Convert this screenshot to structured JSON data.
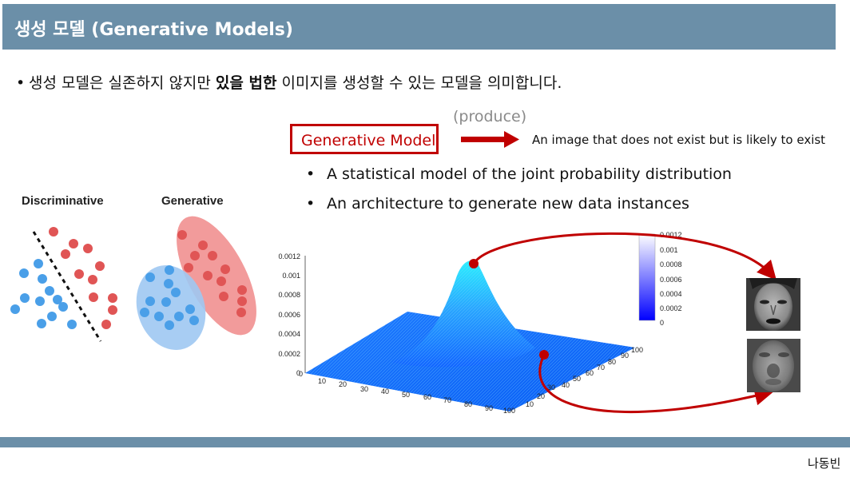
{
  "title": "생성 모델 (Generative Models)",
  "main_bullet": {
    "marker": "•",
    "text_before": "생성 모델은 실존하지 않지만 ",
    "bold": "있을 법한",
    "text_after": " 이미지를 생성할 수 있는 모델을 의미합니다."
  },
  "produce_label": "(produce)",
  "generative_model_label": "Generative Model",
  "image_description": "An image that does not exist but is likely to exist",
  "sub_bullets": [
    {
      "marker": "•",
      "text": "A statistical model of the joint probability distribution"
    },
    {
      "marker": "•",
      "text": "An architecture to generate new data instances"
    }
  ],
  "diagram_labels": {
    "discriminative": "Discriminative",
    "generative": "Generative"
  },
  "colors": {
    "header": "#6b8fa8",
    "accent_red": "#c00000",
    "class_red": "#e05555",
    "class_blue": "#4a9fe8"
  },
  "plot": {
    "z_ticks": [
      "0.0012",
      "0.001",
      "0.0008",
      "0.0006",
      "0.0004",
      "0.0002",
      "0"
    ],
    "x_ticks": [
      "0",
      "10",
      "20",
      "30",
      "40",
      "50",
      "60",
      "70",
      "80",
      "90",
      "100"
    ],
    "y_ticks": [
      "10",
      "20",
      "30",
      "40",
      "50",
      "60",
      "70",
      "80",
      "90",
      "100"
    ],
    "colorbar_ticks": [
      "0.0012",
      "0.001",
      "0.0008",
      "0.0006",
      "0.0004",
      "0.0002",
      "0"
    ]
  },
  "author": "나동빈"
}
